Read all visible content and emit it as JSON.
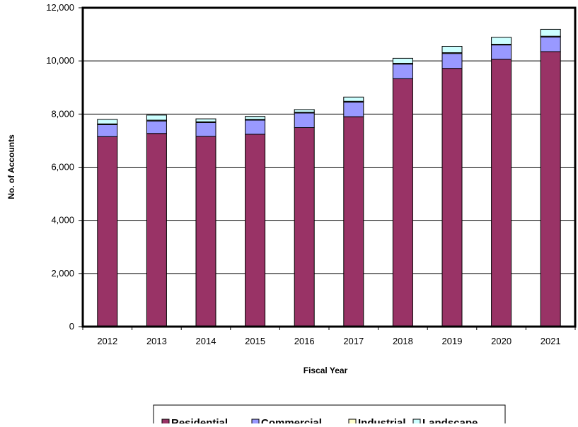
{
  "chart_data": {
    "type": "bar",
    "stacked": true,
    "title": "",
    "xlabel": "Fiscal Year",
    "ylabel": "No. of Accounts",
    "ylim": [
      0,
      12000
    ],
    "yticks": [
      0,
      2000,
      4000,
      6000,
      8000,
      10000,
      12000
    ],
    "ytick_labels": [
      "0",
      "2,000",
      "4,000",
      "6,000",
      "8,000",
      "10,000",
      "12,000"
    ],
    "grid": true,
    "legend_position": "bottom",
    "categories": [
      "2012",
      "2013",
      "2014",
      "2015",
      "2016",
      "2017",
      "2018",
      "2019",
      "2020",
      "2021"
    ],
    "series": [
      {
        "name": "Residential",
        "color": "#993366",
        "values": [
          7150,
          7270,
          7160,
          7240,
          7490,
          7900,
          9330,
          9720,
          10060,
          10350
        ]
      },
      {
        "name": "Commercial",
        "color": "#9999FF",
        "values": [
          450,
          470,
          520,
          530,
          550,
          550,
          550,
          560,
          540,
          550
        ]
      },
      {
        "name": "Industrial",
        "color": "#FFFFCC",
        "values": [
          30,
          30,
          30,
          30,
          30,
          30,
          30,
          30,
          30,
          30
        ]
      },
      {
        "name": "Landscape",
        "color": "#CCFFFF",
        "values": [
          170,
          190,
          110,
          110,
          100,
          160,
          190,
          240,
          260,
          260
        ]
      }
    ]
  }
}
